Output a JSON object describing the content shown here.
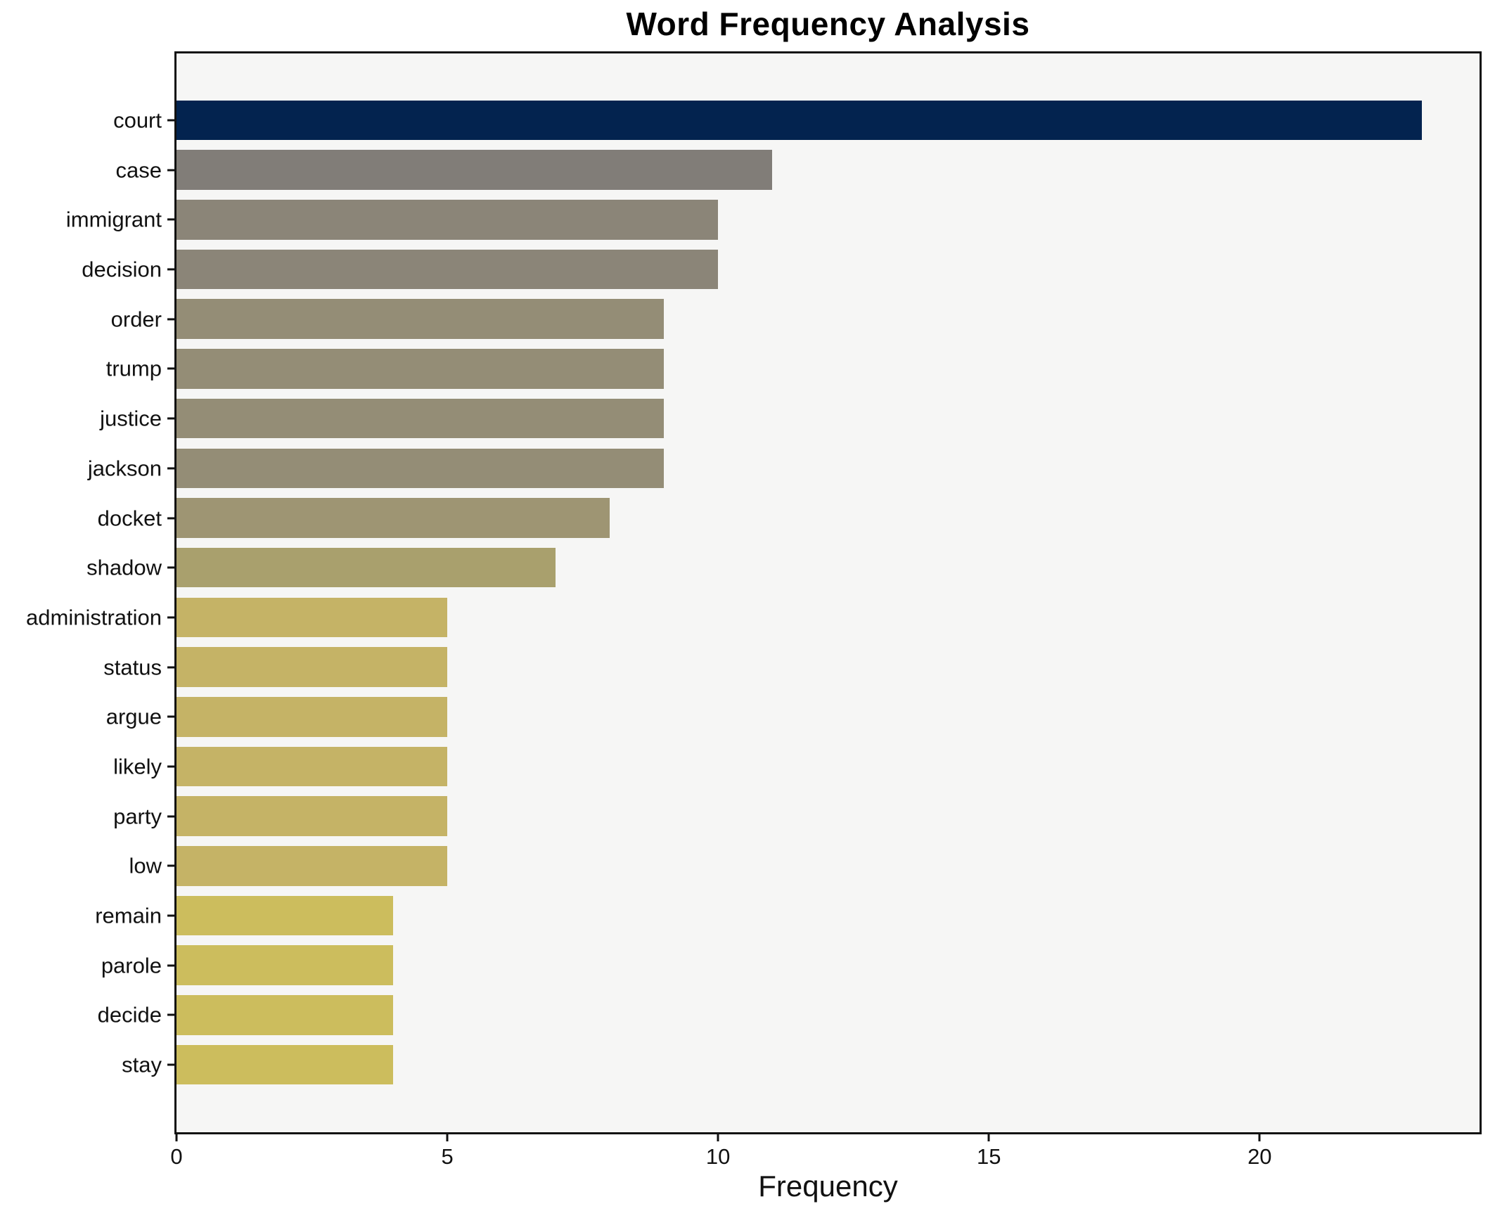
{
  "title": "Word Frequency Analysis",
  "colors": {
    "figure_background": "#ffffff",
    "plot_background": "#f6f6f5",
    "axis_line": "#111111",
    "text": "#111111"
  },
  "chart_data": {
    "type": "bar",
    "orientation": "horizontal",
    "title": "Word Frequency Analysis",
    "xlabel": "Frequency",
    "ylabel": "",
    "categories": [
      "court",
      "case",
      "immigrant",
      "decision",
      "order",
      "trump",
      "justice",
      "jackson",
      "docket",
      "shadow",
      "administration",
      "status",
      "argue",
      "likely",
      "party",
      "low",
      "remain",
      "parole",
      "decide",
      "stay"
    ],
    "values": [
      23,
      11,
      10,
      10,
      9,
      9,
      9,
      9,
      8,
      7,
      5,
      5,
      5,
      5,
      5,
      5,
      4,
      4,
      4,
      4
    ],
    "bar_colors": [
      "#03234f",
      "#817d78",
      "#8b8578",
      "#8b8578",
      "#948d76",
      "#948d76",
      "#948d76",
      "#948d76",
      "#9e9573",
      "#a9a06d",
      "#c5b366",
      "#c5b366",
      "#c5b366",
      "#c5b366",
      "#c5b366",
      "#c5b366",
      "#ccbd5d",
      "#ccbd5d",
      "#ccbd5d",
      "#ccbd5d"
    ],
    "xlim": [
      0,
      24.06
    ],
    "xticks": [
      0,
      5,
      10,
      15,
      20
    ],
    "grid": false,
    "legend": "none"
  }
}
